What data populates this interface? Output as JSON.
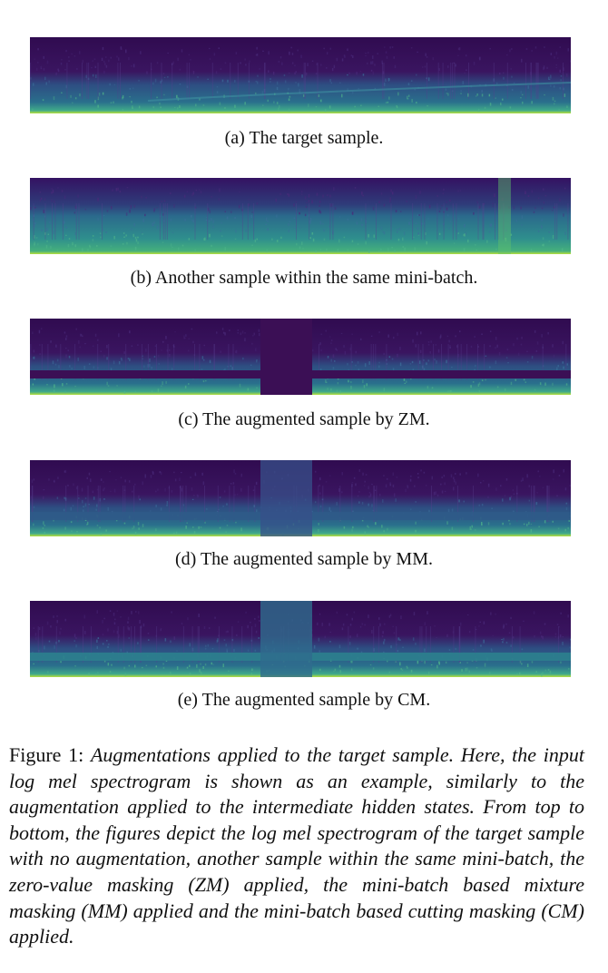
{
  "panels": [
    {
      "id": "a",
      "caption": "(a)  The target sample.",
      "mask": "none"
    },
    {
      "id": "b",
      "caption": "(b)  Another sample within the same mini-batch.",
      "mask": "none"
    },
    {
      "id": "c",
      "caption": "(c)  The augmented sample by ZM.",
      "mask": "zero"
    },
    {
      "id": "d",
      "caption": "(d)  The augmented sample by MM.",
      "mask": "mixture"
    },
    {
      "id": "e",
      "caption": "(e)  The augmented sample by CM.",
      "mask": "cutting"
    }
  ],
  "figure_caption": {
    "label": "Figure 1:",
    "text": "Augmentations applied to the target sample.  Here, the input log mel spectrogram is shown as an example, similarly to the augmentation applied to the intermediate hidden states. From top to bottom, the figures depict the log mel spectrogram of the target sample with no augmentation, another sample within the same mini-batch, the zero-value masking (ZM) applied, the mini-batch based mixture masking (MM) applied and the mini-batch based cutting masking (CM) applied."
  },
  "colors": {
    "background": "#3b0f55",
    "low": "#2f1a60",
    "mid": "#2b5b8a",
    "high": "#3aa58a",
    "peak": "#bfe03a"
  }
}
